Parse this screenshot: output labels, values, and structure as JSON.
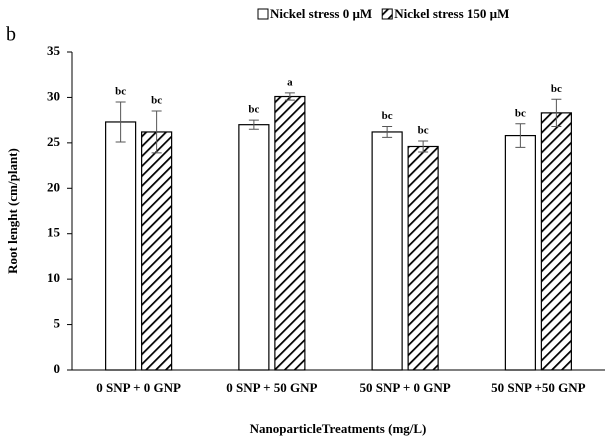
{
  "chart_data": {
    "type": "bar",
    "panel_label": "b",
    "xlabel": "NanoparticleTreatments (mg/L)",
    "ylabel": "Root lenght (cm/plant)",
    "categories": [
      "0 SNP + 0 GNP",
      "0 SNP + 50 GNP",
      "50 SNP + 0 GNP",
      "50 SNP +50 GNP"
    ],
    "series": [
      {
        "name": "Nickel stress 0 µM",
        "color": "#ffffff",
        "pattern": "solid",
        "values": [
          27.3,
          27.0,
          26.2,
          25.8
        ],
        "errors": [
          2.2,
          0.5,
          0.6,
          1.3
        ],
        "letters": [
          "bc",
          "bc",
          "bc",
          "bc"
        ]
      },
      {
        "name": "Nickel stress 150 µM",
        "color": "#000000",
        "pattern": "hatch",
        "values": [
          26.2,
          30.1,
          24.6,
          28.3
        ],
        "errors": [
          2.3,
          0.4,
          0.6,
          1.5
        ],
        "letters": [
          "bc",
          "a",
          "bc",
          "bc"
        ]
      }
    ],
    "ylim": [
      0,
      35
    ],
    "yticks": [
      0,
      5,
      10,
      15,
      20,
      25,
      30,
      35
    ],
    "grid": false,
    "legend": "top"
  }
}
